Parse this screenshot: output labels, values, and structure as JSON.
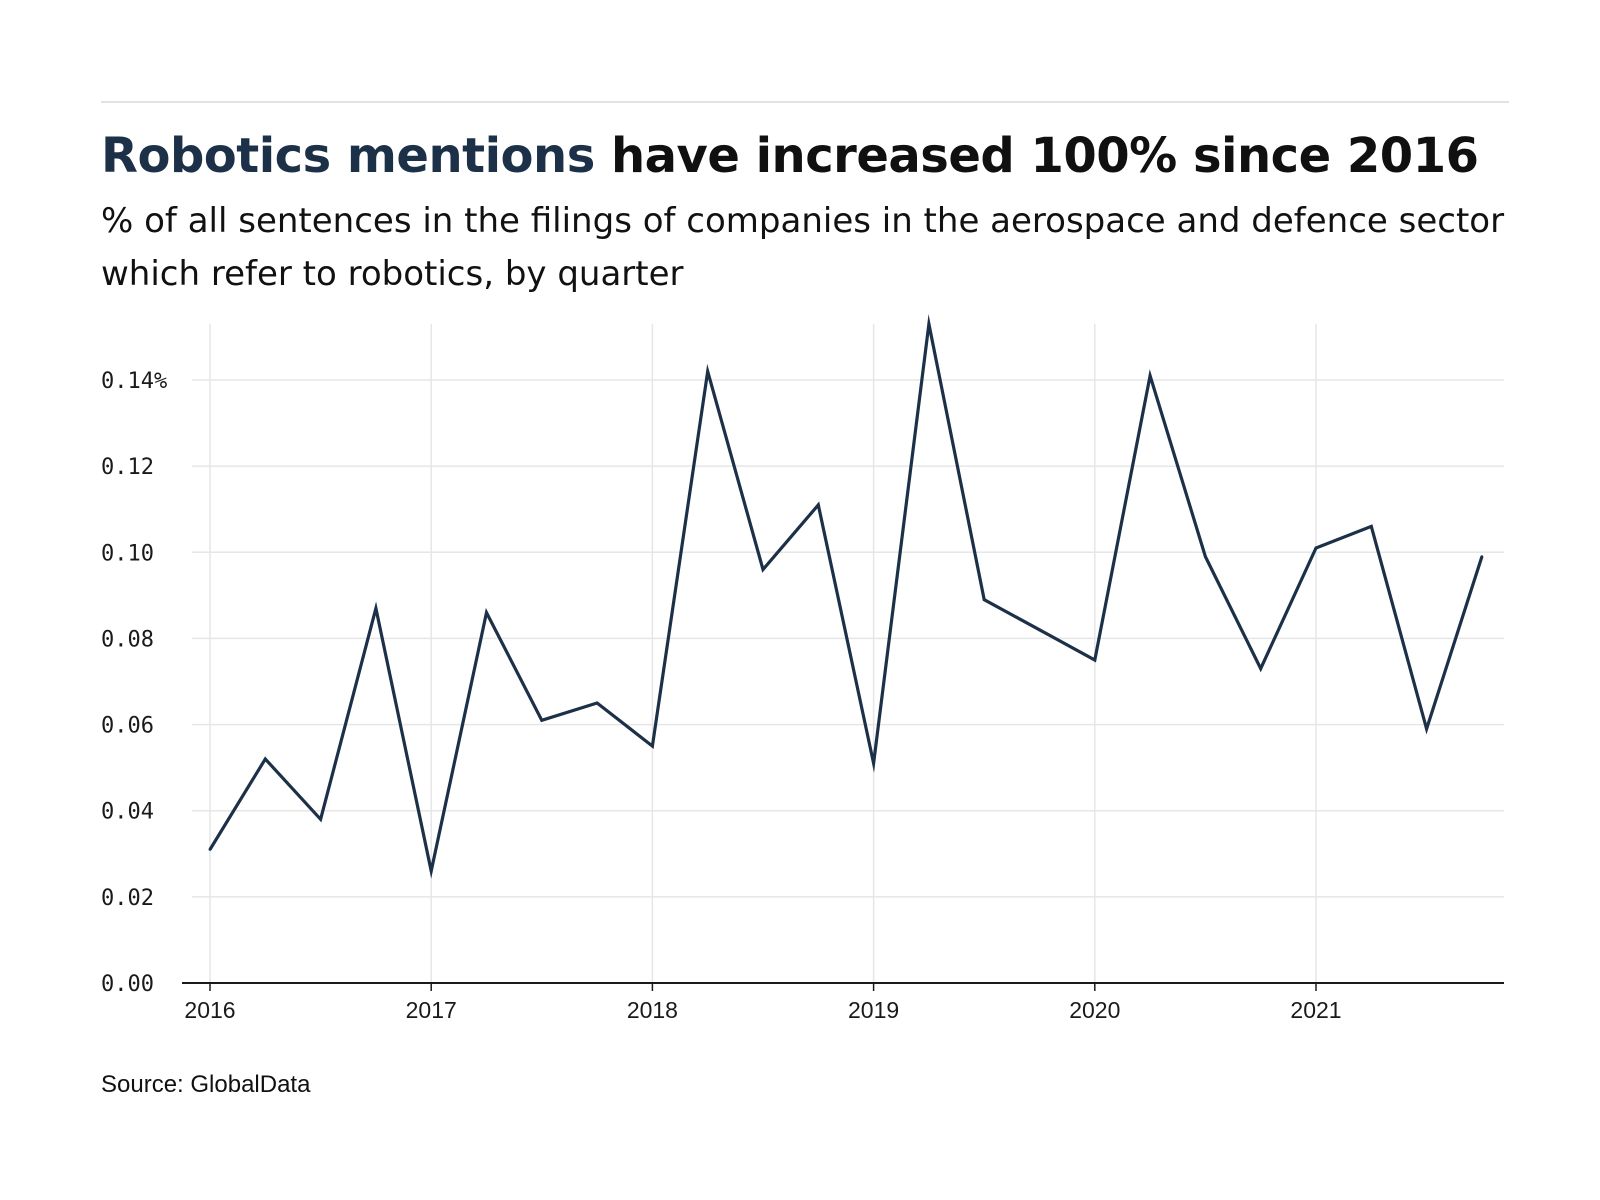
{
  "header": {
    "title_highlight": "Robotics mentions",
    "title_rest": " have increased 100% since 2016",
    "subtitle": "% of all sentences in the filings of companies in the aerospace and defence sector which refer to robotics, by quarter"
  },
  "footer": {
    "source": "Source: GlobalData"
  },
  "colors": {
    "line": "#1c3148",
    "highlight": "#1c3148",
    "grid": "#e6e6e6",
    "axis": "#1a1a1a"
  },
  "chart_data": {
    "type": "line",
    "title": "Robotics mentions have increased 100% since 2016",
    "subtitle": "% of all sentences in the filings of companies in the aerospace and defence sector which refer to robotics, by quarter",
    "xlabel": "",
    "ylabel": "",
    "x_tick_labels": [
      "2016",
      "2017",
      "2018",
      "2019",
      "2020",
      "2021"
    ],
    "y_tick_labels": [
      "0.00",
      "0.02",
      "0.04",
      "0.06",
      "0.08",
      "0.10",
      "0.12",
      "0.14%"
    ],
    "y_ticks": [
      0,
      0.02,
      0.04,
      0.06,
      0.08,
      0.1,
      0.12,
      0.14
    ],
    "ylim": [
      0,
      0.153
    ],
    "xlim": [
      "2016-Q1",
      "2021-Q4"
    ],
    "grid": true,
    "legend": "none",
    "series": [
      {
        "x": [
          "2016-Q1",
          "2016-Q2",
          "2016-Q3",
          "2016-Q4",
          "2017-Q1",
          "2017-Q2",
          "2017-Q3",
          "2017-Q4",
          "2018-Q1",
          "2018-Q2",
          "2018-Q3",
          "2018-Q4",
          "2019-Q1",
          "2019-Q2",
          "2019-Q3",
          "2019-Q4",
          "2020-Q1",
          "2020-Q2",
          "2020-Q3",
          "2020-Q4",
          "2021-Q1",
          "2021-Q2",
          "2021-Q3",
          "2021-Q4"
        ],
        "values": [
          0.031,
          0.052,
          0.038,
          0.087,
          0.026,
          0.086,
          0.061,
          0.065,
          0.055,
          0.142,
          0.096,
          0.111,
          0.051,
          0.153,
          0.089,
          0.082,
          0.075,
          0.141,
          0.099,
          0.073,
          0.101,
          0.106,
          0.059,
          0.099
        ]
      }
    ],
    "source": "Source: GlobalData"
  }
}
